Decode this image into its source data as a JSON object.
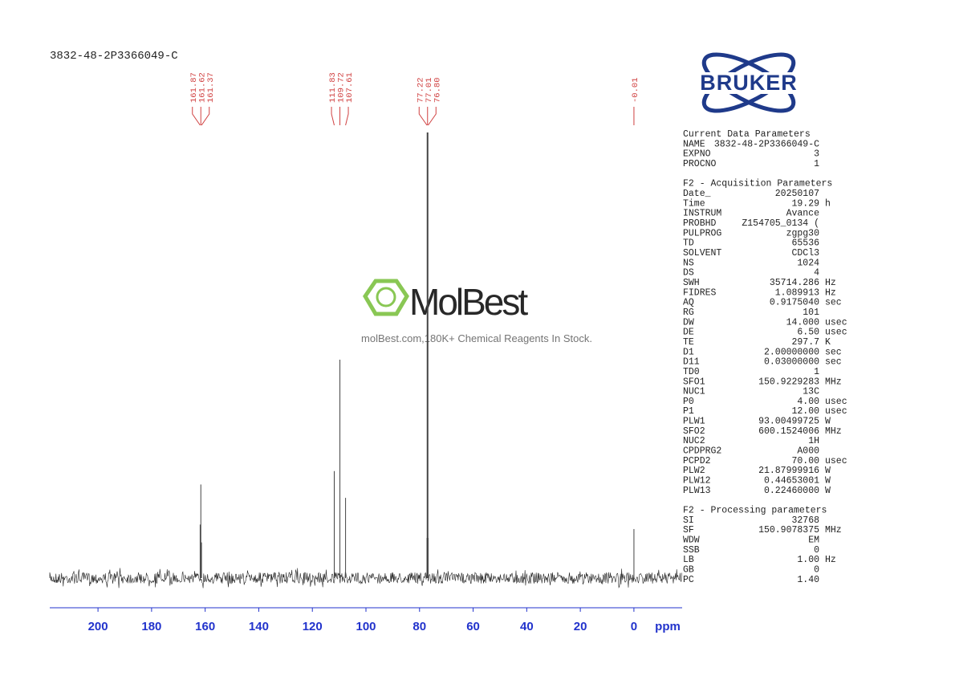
{
  "chart_data": {
    "type": "spectrum",
    "title": "3832-48-2P3366049-C",
    "x_label": "ppm",
    "xlim": [
      218,
      -18
    ],
    "xticks": [
      200,
      180,
      160,
      140,
      120,
      100,
      80,
      60,
      40,
      20,
      0
    ],
    "ylim": [
      0,
      100
    ],
    "color": "#444444",
    "axis_color": "#2233cc",
    "label_color": "#d04040",
    "x": [
      161.87,
      161.62,
      161.37,
      111.83,
      109.72,
      107.61,
      77.22,
      77.01,
      76.8,
      -0.01
    ],
    "values": [
      12,
      21,
      8,
      24,
      49,
      18,
      9,
      100,
      9,
      11
    ],
    "peak_labels": [
      161.87,
      161.62,
      161.37,
      111.83,
      109.72,
      107.61,
      77.22,
      77.01,
      {
        "value": 76.8,
        "label": "76.80"
      },
      -0.01
    ]
  },
  "watermark": {
    "brand": "MolBest",
    "tagline": "molBest.com,180K+ Chemical Reagents In Stock."
  },
  "logo": "BRUKER",
  "parameters": [
    {
      "title": "Current Data Parameters",
      "rows": [
        [
          "NAME",
          "3832-48-2P3366049-C"
        ],
        [
          "EXPNO",
          "3"
        ],
        [
          "PROCNO",
          "1"
        ]
      ]
    },
    {
      "title": "F2 - Acquisition Parameters",
      "rows": [
        [
          "Date_",
          "20250107"
        ],
        [
          "Time",
          "19.29",
          "h"
        ],
        [
          "INSTRUM",
          "Avance"
        ],
        [
          "PROBHD",
          "Z154705_0134 ("
        ],
        [
          "PULPROG",
          "zgpg30"
        ],
        [
          "TD",
          "65536"
        ],
        [
          "SOLVENT",
          "CDCl3"
        ],
        [
          "NS",
          "1024"
        ],
        [
          "DS",
          "4"
        ],
        [
          "SWH",
          "35714.286",
          "Hz"
        ],
        [
          "FIDRES",
          "1.089913",
          "Hz"
        ],
        [
          "AQ",
          "0.9175040",
          "sec"
        ],
        [
          "RG",
          "101"
        ],
        [
          "DW",
          "14.000",
          "usec"
        ],
        [
          "DE",
          "6.50",
          "usec"
        ],
        [
          "TE",
          "297.7",
          "K"
        ],
        [
          "D1",
          "2.00000000",
          "sec"
        ],
        [
          "D11",
          "0.03000000",
          "sec"
        ],
        [
          "TD0",
          "1"
        ],
        [
          "SFO1",
          "150.9229283",
          "MHz"
        ],
        [
          "NUC1",
          "13C"
        ],
        [
          "P0",
          "4.00",
          "usec"
        ],
        [
          "P1",
          "12.00",
          "usec"
        ],
        [
          "PLW1",
          "93.00499725",
          "W"
        ],
        [
          "SFO2",
          "600.1524006",
          "MHz"
        ],
        [
          "NUC2",
          "1H"
        ],
        [
          "CPDPRG2",
          "A000"
        ],
        [
          "PCPD2",
          "70.00",
          "usec"
        ],
        [
          "PLW2",
          "21.87999916",
          "W"
        ],
        [
          "PLW12",
          "0.44653001",
          "W"
        ],
        [
          "PLW13",
          "0.22460000",
          "W"
        ]
      ]
    },
    {
      "title": "F2 - Processing parameters",
      "rows": [
        [
          "SI",
          "32768"
        ],
        [
          "SF",
          "150.9078375",
          "MHz"
        ],
        [
          "WDW",
          "EM"
        ],
        [
          "SSB",
          "0"
        ],
        [
          "LB",
          "1.00",
          "Hz"
        ],
        [
          "GB",
          "0"
        ],
        [
          "PC",
          "1.40"
        ]
      ]
    }
  ]
}
